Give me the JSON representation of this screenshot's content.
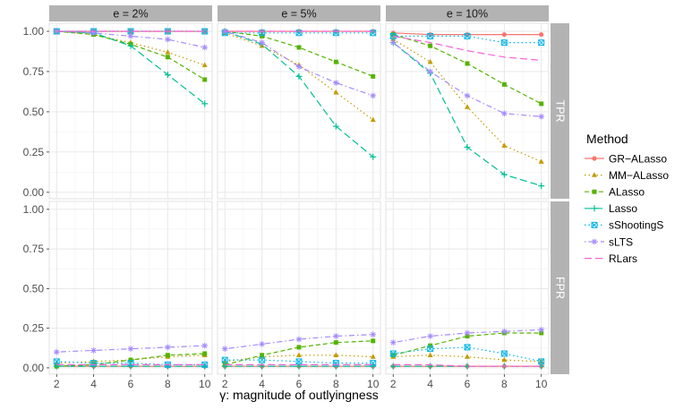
{
  "chart_data": {
    "type": "line",
    "xlabel": "γ: magnitude of outlyingness",
    "x": [
      2,
      4,
      6,
      8,
      10
    ],
    "xticks": [
      "2",
      "4",
      "6",
      "8",
      "10"
    ],
    "yticks": [
      "0.00",
      "0.25",
      "0.50",
      "0.75",
      "1.00"
    ],
    "ylim": [
      -0.04,
      1.05
    ],
    "grid": true,
    "legend": {
      "title": "Method",
      "position": "right",
      "entries": [
        "GR−ALasso",
        "MM−ALasso",
        "ALasso",
        "Lasso",
        "sShootingS",
        "sLTS",
        "RLars"
      ]
    },
    "column_facets": [
      "e = 2%",
      "e = 5%",
      "e = 10%"
    ],
    "row_facets": [
      "TPR",
      "FPR"
    ],
    "series_styles": [
      {
        "name": "GR−ALasso",
        "color": "#F8766D",
        "marker": "circle",
        "dash": "solid"
      },
      {
        "name": "MM−ALasso",
        "color": "#C49A00",
        "marker": "triangle",
        "dash": "dotted"
      },
      {
        "name": "ALasso",
        "color": "#53B400",
        "marker": "square",
        "dash": "dashed"
      },
      {
        "name": "Lasso",
        "color": "#00C094",
        "marker": "plus",
        "dash": "longdash"
      },
      {
        "name": "sShootingS",
        "color": "#00B6EB",
        "marker": "boxx",
        "dash": "dotted"
      },
      {
        "name": "sLTS",
        "color": "#A58AFF",
        "marker": "asterisk",
        "dash": "dotdash"
      },
      {
        "name": "RLars",
        "color": "#FB61D7",
        "marker": "none",
        "dash": "longdash"
      }
    ],
    "panels": [
      {
        "row": "TPR",
        "col": "e = 2%",
        "series": [
          {
            "name": "GR−ALasso",
            "values": [
              1.0,
              1.0,
              1.0,
              1.0,
              1.0
            ]
          },
          {
            "name": "MM−ALasso",
            "values": [
              1.0,
              0.98,
              0.93,
              0.87,
              0.79
            ]
          },
          {
            "name": "ALasso",
            "values": [
              1.0,
              0.98,
              0.92,
              0.84,
              0.7
            ]
          },
          {
            "name": "Lasso",
            "values": [
              1.0,
              0.99,
              0.91,
              0.73,
              0.55
            ]
          },
          {
            "name": "sShootingS",
            "values": [
              1.0,
              1.0,
              1.0,
              1.0,
              1.0
            ]
          },
          {
            "name": "sLTS",
            "values": [
              1.0,
              0.99,
              0.97,
              0.95,
              0.9
            ]
          },
          {
            "name": "RLars",
            "values": [
              1.0,
              1.0,
              1.0,
              1.0,
              1.0
            ]
          }
        ]
      },
      {
        "row": "TPR",
        "col": "e = 5%",
        "series": [
          {
            "name": "GR−ALasso",
            "values": [
              1.0,
              1.0,
              1.0,
              1.0,
              1.0
            ]
          },
          {
            "name": "MM−ALasso",
            "values": [
              0.99,
              0.91,
              0.79,
              0.62,
              0.45
            ]
          },
          {
            "name": "ALasso",
            "values": [
              1.0,
              0.97,
              0.9,
              0.81,
              0.72
            ]
          },
          {
            "name": "Lasso",
            "values": [
              1.0,
              0.92,
              0.72,
              0.41,
              0.22
            ]
          },
          {
            "name": "sShootingS",
            "values": [
              0.99,
              0.99,
              0.99,
              0.99,
              0.99
            ]
          },
          {
            "name": "sLTS",
            "values": [
              1.0,
              0.93,
              0.78,
              0.68,
              0.6
            ]
          },
          {
            "name": "RLars",
            "values": [
              1.0,
              1.0,
              1.0,
              1.0,
              1.0
            ]
          }
        ]
      },
      {
        "row": "TPR",
        "col": "e = 10%",
        "series": [
          {
            "name": "GR−ALasso",
            "values": [
              0.99,
              0.98,
              0.98,
              0.98,
              0.98
            ]
          },
          {
            "name": "MM−ALasso",
            "values": [
              0.95,
              0.81,
              0.53,
              0.29,
              0.19
            ]
          },
          {
            "name": "ALasso",
            "values": [
              0.98,
              0.91,
              0.8,
              0.67,
              0.55
            ]
          },
          {
            "name": "Lasso",
            "values": [
              0.93,
              0.74,
              0.28,
              0.11,
              0.04
            ]
          },
          {
            "name": "sShootingS",
            "values": [
              0.97,
              0.97,
              0.97,
              0.93,
              0.93
            ]
          },
          {
            "name": "sLTS",
            "values": [
              0.93,
              0.75,
              0.6,
              0.49,
              0.47
            ]
          },
          {
            "name": "RLars",
            "values": [
              0.97,
              0.93,
              0.88,
              0.84,
              0.82
            ]
          }
        ]
      },
      {
        "row": "FPR",
        "col": "e = 2%",
        "series": [
          {
            "name": "GR−ALasso",
            "values": [
              0.01,
              0.01,
              0.01,
              0.01,
              0.01
            ]
          },
          {
            "name": "MM−ALasso",
            "values": [
              0.03,
              0.04,
              0.05,
              0.07,
              0.08
            ]
          },
          {
            "name": "ALasso",
            "values": [
              0.01,
              0.02,
              0.05,
              0.08,
              0.09
            ]
          },
          {
            "name": "Lasso",
            "values": [
              0.01,
              0.01,
              0.01,
              0.01,
              0.01
            ]
          },
          {
            "name": "sShootingS",
            "values": [
              0.04,
              0.03,
              0.03,
              0.02,
              0.02
            ]
          },
          {
            "name": "sLTS",
            "values": [
              0.1,
              0.11,
              0.12,
              0.13,
              0.14
            ]
          },
          {
            "name": "RLars",
            "values": [
              0.02,
              0.02,
              0.02,
              0.02,
              0.02
            ]
          }
        ]
      },
      {
        "row": "FPR",
        "col": "e = 5%",
        "series": [
          {
            "name": "GR−ALasso",
            "values": [
              0.01,
              0.01,
              0.01,
              0.01,
              0.01
            ]
          },
          {
            "name": "MM−ALasso",
            "values": [
              0.04,
              0.07,
              0.08,
              0.08,
              0.07
            ]
          },
          {
            "name": "ALasso",
            "values": [
              0.02,
              0.08,
              0.13,
              0.16,
              0.17
            ]
          },
          {
            "name": "Lasso",
            "values": [
              0.01,
              0.01,
              0.01,
              0.01,
              0.01
            ]
          },
          {
            "name": "sShootingS",
            "values": [
              0.05,
              0.05,
              0.04,
              0.03,
              0.03
            ]
          },
          {
            "name": "sLTS",
            "values": [
              0.12,
              0.15,
              0.18,
              0.2,
              0.21
            ]
          },
          {
            "name": "RLars",
            "values": [
              0.02,
              0.02,
              0.02,
              0.02,
              0.02
            ]
          }
        ]
      },
      {
        "row": "FPR",
        "col": "e = 10%",
        "series": [
          {
            "name": "GR−ALasso",
            "values": [
              0.01,
              0.01,
              0.01,
              0.01,
              0.01
            ]
          },
          {
            "name": "MM−ALasso",
            "values": [
              0.07,
              0.08,
              0.07,
              0.05,
              0.04
            ]
          },
          {
            "name": "ALasso",
            "values": [
              0.08,
              0.14,
              0.2,
              0.22,
              0.22
            ]
          },
          {
            "name": "Lasso",
            "values": [
              0.01,
              0.01,
              0.01,
              0.01,
              0.01
            ]
          },
          {
            "name": "sShootingS",
            "values": [
              0.09,
              0.12,
              0.13,
              0.09,
              0.04
            ]
          },
          {
            "name": "sLTS",
            "values": [
              0.16,
              0.2,
              0.22,
              0.23,
              0.24
            ]
          },
          {
            "name": "RLars",
            "values": [
              0.02,
              0.02,
              0.01,
              0.01,
              0.01
            ]
          }
        ]
      }
    ]
  }
}
